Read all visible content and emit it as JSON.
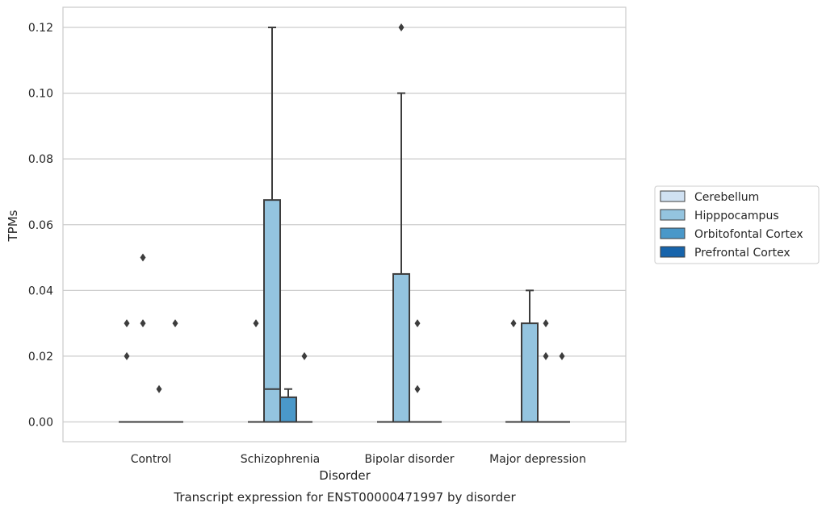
{
  "chart_data": {
    "type": "box",
    "caption": "Transcript expression for ENST00000471997 by disorder",
    "xlabel": "Disorder",
    "ylabel": "TPMs",
    "ylim": [
      -0.006,
      0.1265
    ],
    "yticks": [
      "0.00",
      "0.02",
      "0.04",
      "0.06",
      "0.08",
      "0.10",
      "0.12"
    ],
    "ytick_values": [
      0,
      0.02,
      0.04,
      0.06,
      0.08,
      0.1,
      0.12
    ],
    "grid": true,
    "legend_position": "right",
    "categories": [
      "Control",
      "Schizophrenia",
      "Bipolar disorder",
      "Major depression"
    ],
    "series": [
      {
        "name": "Cerebellum",
        "color": "#d0e1f2"
      },
      {
        "name": "Hipppocampus",
        "color": "#94c4df"
      },
      {
        "name": "Orbitofontal Cortex",
        "color": "#4a98c9"
      },
      {
        "name": "Prefrontal Cortex",
        "color": "#1764ab"
      }
    ],
    "boxes": [
      {
        "category": 0,
        "series": 0,
        "q1": 0,
        "median": 0,
        "q3": 0,
        "whisker_low": 0,
        "whisker_high": 0,
        "outliers": [
          0.02,
          0.03
        ]
      },
      {
        "category": 0,
        "series": 1,
        "q1": 0,
        "median": 0,
        "q3": 0,
        "whisker_low": 0,
        "whisker_high": 0,
        "outliers": [
          0.03,
          0.05
        ]
      },
      {
        "category": 0,
        "series": 2,
        "q1": 0,
        "median": 0,
        "q3": 0,
        "whisker_low": 0,
        "whisker_high": 0,
        "outliers": [
          0.01
        ]
      },
      {
        "category": 0,
        "series": 3,
        "q1": 0,
        "median": 0,
        "q3": 0,
        "whisker_low": 0,
        "whisker_high": 0,
        "outliers": [
          0.03
        ]
      },
      {
        "category": 1,
        "series": 0,
        "q1": 0,
        "median": 0,
        "q3": 0,
        "whisker_low": 0,
        "whisker_high": 0,
        "outliers": [
          0.03
        ]
      },
      {
        "category": 1,
        "series": 1,
        "q1": 0,
        "median": 0.01,
        "q3": 0.0675,
        "whisker_low": 0,
        "whisker_high": 0.12,
        "outliers": []
      },
      {
        "category": 1,
        "series": 2,
        "q1": 0,
        "median": 0,
        "q3": 0.0075,
        "whisker_low": 0,
        "whisker_high": 0.01,
        "outliers": []
      },
      {
        "category": 1,
        "series": 3,
        "q1": 0,
        "median": 0,
        "q3": 0,
        "whisker_low": 0,
        "whisker_high": 0,
        "outliers": [
          0.02
        ]
      },
      {
        "category": 2,
        "series": 0,
        "q1": 0,
        "median": 0,
        "q3": 0,
        "whisker_low": 0,
        "whisker_high": 0,
        "outliers": []
      },
      {
        "category": 2,
        "series": 1,
        "q1": 0,
        "median": 0,
        "q3": 0.045,
        "whisker_low": 0,
        "whisker_high": 0.1,
        "outliers": [
          0.12
        ]
      },
      {
        "category": 2,
        "series": 2,
        "q1": 0,
        "median": 0,
        "q3": 0,
        "whisker_low": 0,
        "whisker_high": 0,
        "outliers": [
          0.01,
          0.03
        ]
      },
      {
        "category": 2,
        "series": 3,
        "q1": 0,
        "median": 0,
        "q3": 0,
        "whisker_low": 0,
        "whisker_high": 0,
        "outliers": []
      },
      {
        "category": 3,
        "series": 0,
        "q1": 0,
        "median": 0,
        "q3": 0,
        "whisker_low": 0,
        "whisker_high": 0,
        "outliers": [
          0.03
        ]
      },
      {
        "category": 3,
        "series": 1,
        "q1": 0,
        "median": 0,
        "q3": 0.03,
        "whisker_low": 0,
        "whisker_high": 0.04,
        "outliers": []
      },
      {
        "category": 3,
        "series": 2,
        "q1": 0,
        "median": 0,
        "q3": 0,
        "whisker_low": 0,
        "whisker_high": 0,
        "outliers": [
          0.02,
          0.03
        ]
      },
      {
        "category": 3,
        "series": 3,
        "q1": 0,
        "median": 0,
        "q3": 0,
        "whisker_low": 0,
        "whisker_high": 0,
        "outliers": [
          0.02
        ]
      }
    ]
  }
}
